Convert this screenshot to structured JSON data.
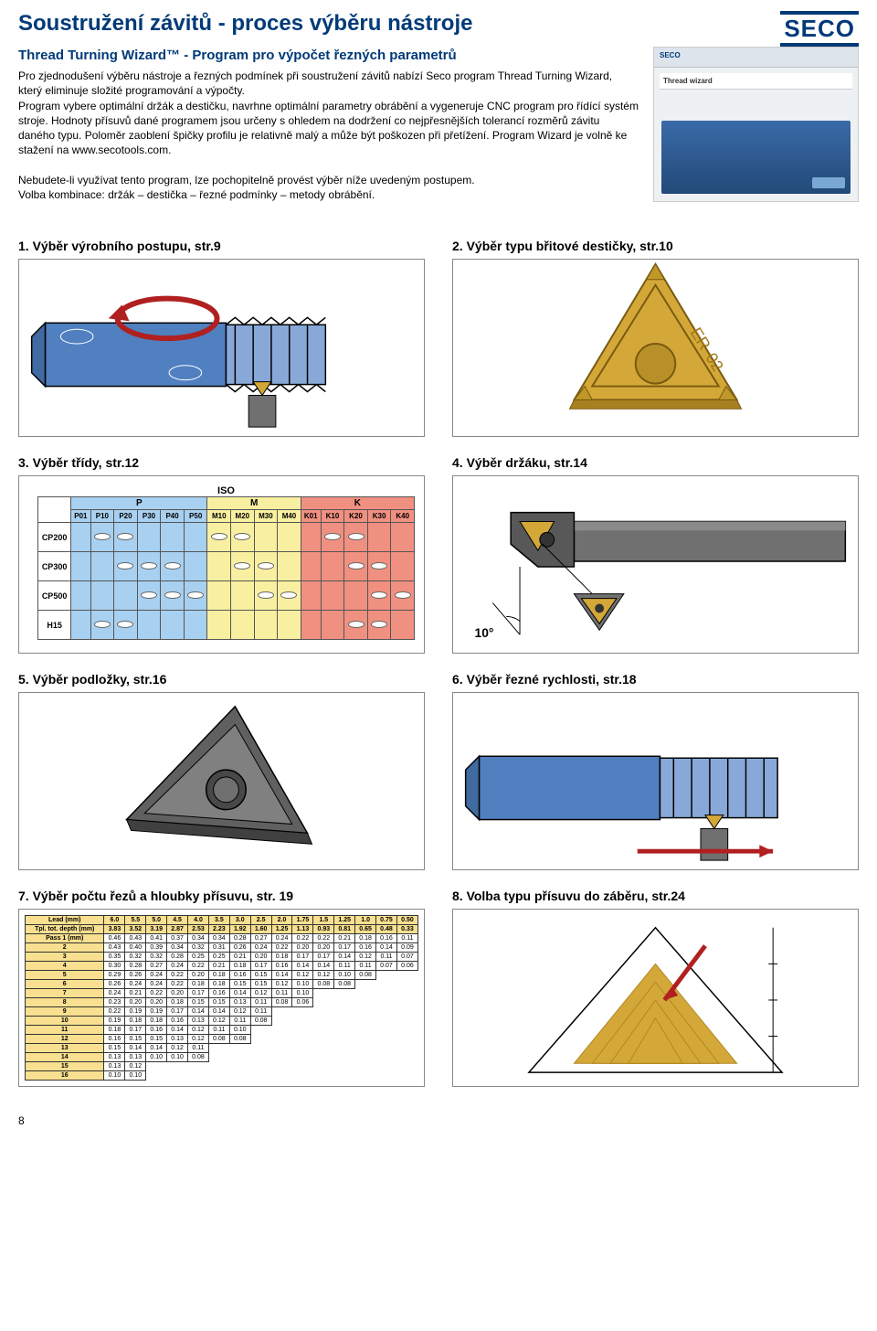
{
  "header": {
    "title": "Soustružení závitů - proces výběru nástroje",
    "logo": "SECO"
  },
  "intro": {
    "subtitle": "Thread Turning Wizard™ - Program pro výpočet řezných parametrů",
    "p1": "Pro zjednodušení výběru nástroje a řezných podmínek při soustružení závitů nabízí Seco program Thread Turning Wizard, který eliminuje složité programování a výpočty.",
    "p2": "Program vybere optimální držák a destičku, navrhne optimální parametry obrábění a vygeneruje CNC program pro řídící systém stroje. Hodnoty přísuvů dané programem jsou určeny s ohledem na dodržení co nejpřesnějších tolerancí rozměrů závitu daného typu. Poloměr zaoblení špičky profilu je relativně malý a může být poškozen při přetížení. Program Wizard je volně ke stažení na www.secotools.com.",
    "p3": "Nebudete-li využívat tento program, lze pochopitelně provést výběr níže uvedeným postupem.",
    "p4": "Volba kombinace: držák – destička – řezné podmínky – metody obrábění.",
    "screenshot_top": "SECO",
    "screenshot_hdr": "Thread wizard"
  },
  "steps": {
    "s1": "1. Výběr výrobního postupu, str.9",
    "s2": "2. Výběr typu břitové destičky, str.10",
    "s3": "3. Výběr třídy, str.12",
    "s4": "4. Výběr držáku, str.14",
    "s5": "5. Výběr podložky, str.16",
    "s6": "6. Výběr řezné rychlosti, str.18",
    "s7": "7. Výběr počtu řezů a hloubky přísuvu, str. 19",
    "s8": "8. Volba typu přísuvu do záběru, str.24"
  },
  "iso": {
    "title": "ISO",
    "groups": [
      "P",
      "M",
      "K"
    ],
    "cols": [
      "P01",
      "P10",
      "P20",
      "P30",
      "P40",
      "P50",
      "M10",
      "M20",
      "M30",
      "M40",
      "K01",
      "K10",
      "K20",
      "K30",
      "K40"
    ],
    "rows": [
      "CP200",
      "CP300",
      "CP500",
      "H15"
    ],
    "group_colors": {
      "P": "#a8d0f0",
      "M": "#f8f0a0",
      "K": "#f09080"
    },
    "ellipses": {
      "CP200": [
        1,
        2,
        6,
        7,
        11,
        12
      ],
      "CP300": [
        2,
        3,
        4,
        7,
        8,
        12,
        13
      ],
      "CP500": [
        3,
        4,
        5,
        8,
        9,
        13,
        14
      ],
      "H15": [
        1,
        2,
        12,
        13
      ]
    }
  },
  "step4": {
    "angle": "10°"
  },
  "pass": {
    "lead_label": "Lead (mm)",
    "depth_label": "Tpl. tot. depth (mm)",
    "pass_label": "Pass 1 (mm)",
    "leads": [
      "6.0",
      "5.5",
      "5.0",
      "4.5",
      "4.0",
      "3.5",
      "3.0",
      "2.5",
      "2.0",
      "1.75",
      "1.5",
      "1.25",
      "1.0",
      "0.75",
      "0.50"
    ],
    "depths": [
      "3.83",
      "3.52",
      "3.19",
      "2.87",
      "2.53",
      "2.23",
      "1.92",
      "1.60",
      "1.25",
      "1.13",
      "0.93",
      "0.81",
      "0.65",
      "0.48",
      "0.33"
    ],
    "rows": [
      {
        "n": "1",
        "v": [
          "0.46",
          "0.43",
          "0.41",
          "0.37",
          "0.34",
          "0.34",
          "0.28",
          "0.27",
          "0.24",
          "0.22",
          "0.22",
          "0.21",
          "0.18",
          "0.16",
          "0.11"
        ]
      },
      {
        "n": "2",
        "v": [
          "0.43",
          "0.40",
          "0.39",
          "0.34",
          "0.32",
          "0.31",
          "0.26",
          "0.24",
          "0.22",
          "0.20",
          "0.20",
          "0.17",
          "0.16",
          "0.14",
          "0.09"
        ]
      },
      {
        "n": "3",
        "v": [
          "0.35",
          "0.32",
          "0.32",
          "0.28",
          "0.25",
          "0.25",
          "0.21",
          "0.20",
          "0.18",
          "0.17",
          "0.17",
          "0.14",
          "0.12",
          "0.11",
          "0.07"
        ]
      },
      {
        "n": "4",
        "v": [
          "0.30",
          "0.28",
          "0.27",
          "0.24",
          "0.22",
          "0.21",
          "0.18",
          "0.17",
          "0.16",
          "0.14",
          "0.14",
          "0.11",
          "0.11",
          "0.07",
          "0.06"
        ]
      },
      {
        "n": "5",
        "v": [
          "0.29",
          "0.26",
          "0.24",
          "0.22",
          "0.20",
          "0.18",
          "0.16",
          "0.15",
          "0.14",
          "0.12",
          "0.12",
          "0.10",
          "0.08",
          "",
          ""
        ]
      },
      {
        "n": "6",
        "v": [
          "0.26",
          "0.24",
          "0.24",
          "0.22",
          "0.18",
          "0.18",
          "0.15",
          "0.15",
          "0.12",
          "0.10",
          "0.08",
          "0.08",
          "",
          "",
          ""
        ]
      },
      {
        "n": "7",
        "v": [
          "0.24",
          "0.21",
          "0.22",
          "0.20",
          "0.17",
          "0.16",
          "0.14",
          "0.12",
          "0.11",
          "0.10",
          "",
          "",
          "",
          "",
          ""
        ]
      },
      {
        "n": "8",
        "v": [
          "0.23",
          "0.20",
          "0.20",
          "0.18",
          "0.15",
          "0.15",
          "0.13",
          "0.11",
          "0.08",
          "0.06",
          "",
          "",
          "",
          "",
          ""
        ]
      },
      {
        "n": "9",
        "v": [
          "0.22",
          "0.19",
          "0.19",
          "0.17",
          "0.14",
          "0.14",
          "0.12",
          "0.11",
          "",
          "",
          "",
          "",
          "",
          "",
          ""
        ]
      },
      {
        "n": "10",
        "v": [
          "0.19",
          "0.18",
          "0.18",
          "0.16",
          "0.13",
          "0.12",
          "0.11",
          "0.08",
          "",
          "",
          "",
          "",
          "",
          "",
          ""
        ]
      },
      {
        "n": "11",
        "v": [
          "0.18",
          "0.17",
          "0.16",
          "0.14",
          "0.12",
          "0.11",
          "0.10",
          "",
          "",
          "",
          "",
          "",
          "",
          "",
          ""
        ]
      },
      {
        "n": "12",
        "v": [
          "0.16",
          "0.15",
          "0.15",
          "0.13",
          "0.12",
          "0.08",
          "0.08",
          "",
          "",
          "",
          "",
          "",
          "",
          "",
          ""
        ]
      },
      {
        "n": "13",
        "v": [
          "0.15",
          "0.14",
          "0.14",
          "0.12",
          "0.11",
          "",
          "",
          "",
          "",
          "",
          "",
          "",
          "",
          "",
          ""
        ]
      },
      {
        "n": "14",
        "v": [
          "0.13",
          "0.13",
          "0.10",
          "0.10",
          "0.08",
          "",
          "",
          "",
          "",
          "",
          "",
          "",
          "",
          "",
          ""
        ]
      },
      {
        "n": "15",
        "v": [
          "0.13",
          "0.12",
          "",
          "",
          "",
          "",
          "",
          "",
          "",
          "",
          "",
          "",
          "",
          "",
          ""
        ]
      },
      {
        "n": "16",
        "v": [
          "0.10",
          "0.10",
          "",
          "",
          "",
          "",
          "",
          "",
          "",
          "",
          "",
          "",
          "",
          "",
          ""
        ]
      }
    ]
  },
  "colors": {
    "primary": "#003a78",
    "insert_gold": "#d4a838",
    "shaft_blue": "#5080c0",
    "holder_gray": "#6a6a6a",
    "arrow_red": "#b02020"
  },
  "page_number": "8"
}
